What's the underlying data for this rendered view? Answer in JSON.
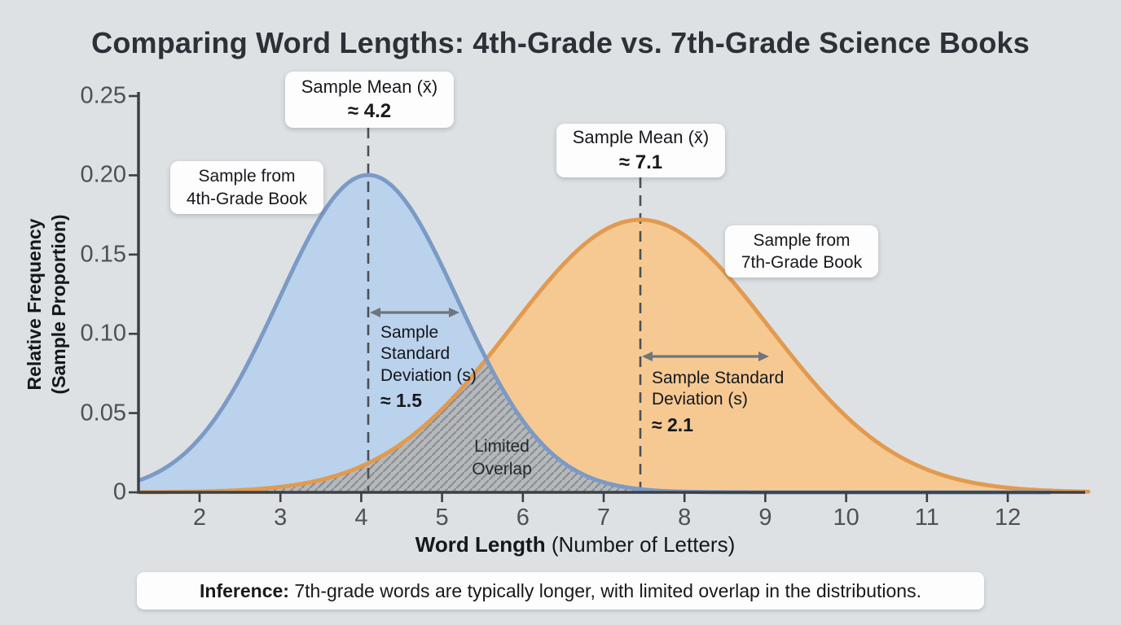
{
  "chart_data": {
    "type": "area",
    "title": "Comparing Word Lengths: 4th-Grade vs. 7th-Grade Science Books",
    "xlabel_bold": "Word Length",
    "xlabel_rest": " (Number of Letters)",
    "ylabel_line1": "Relative Frequency",
    "ylabel_line2": "(Sample Proportion)",
    "x_ticks": [
      2,
      3,
      4,
      5,
      6,
      7,
      8,
      9,
      10,
      11,
      12
    ],
    "y_ticks": [
      "0",
      "0.05",
      "0.10",
      "0.15",
      "0.20",
      "0.25"
    ],
    "y_tick_values": [
      0,
      0.05,
      0.1,
      0.15,
      0.2,
      0.25
    ],
    "xlim": [
      1.3,
      12.9
    ],
    "ylim": [
      0,
      0.25
    ],
    "grid": false,
    "legend_position": "inline-callouts",
    "series": [
      {
        "name": "4th-grade sample distribution",
        "label_line1": "Sample from",
        "label_line2": "4th-Grade Book",
        "sample_mean": 4.2,
        "sample_sd": 1.5,
        "peak_relative_frequency": 0.2,
        "stroke": "#7b9ac6",
        "fill": "#bad2ec"
      },
      {
        "name": "7th-grade sample distribution",
        "label_line1": "Sample from",
        "label_line2": "7th-Grade Book",
        "sample_mean": 7.1,
        "sample_sd": 2.1,
        "peak_relative_frequency": 0.17,
        "stroke": "#e29a4e",
        "fill": "#f6c993"
      }
    ],
    "overlap_fill": "#b5b9bc",
    "overlap_hatch": "#898e93",
    "axis_color": "#3a4046",
    "mean_line_color": "#4b5056",
    "arrow_color": "#6e757c",
    "tick_label_color": "#4b5157",
    "background": "#dde1e4"
  },
  "annotations": {
    "mean1": {
      "line1": "Sample Mean (x̄)",
      "line2": "≈ 4.2"
    },
    "mean2": {
      "line1": "Sample Mean (x̄)",
      "line2": "≈ 7.1"
    },
    "sd1": {
      "line1": "Sample",
      "line2": "Standard",
      "line3": "Deviation (s)",
      "line4": "≈ 1.5"
    },
    "sd2": {
      "line1": "Sample Standard",
      "line2": "Deviation (s)",
      "line3": "≈ 2.1"
    },
    "overlap": {
      "line1": "Limited",
      "line2": "Overlap"
    },
    "inference": {
      "prefix": "Inference:",
      "text": " 7th-grade words are typically longer, with limited overlap in the distributions."
    }
  }
}
